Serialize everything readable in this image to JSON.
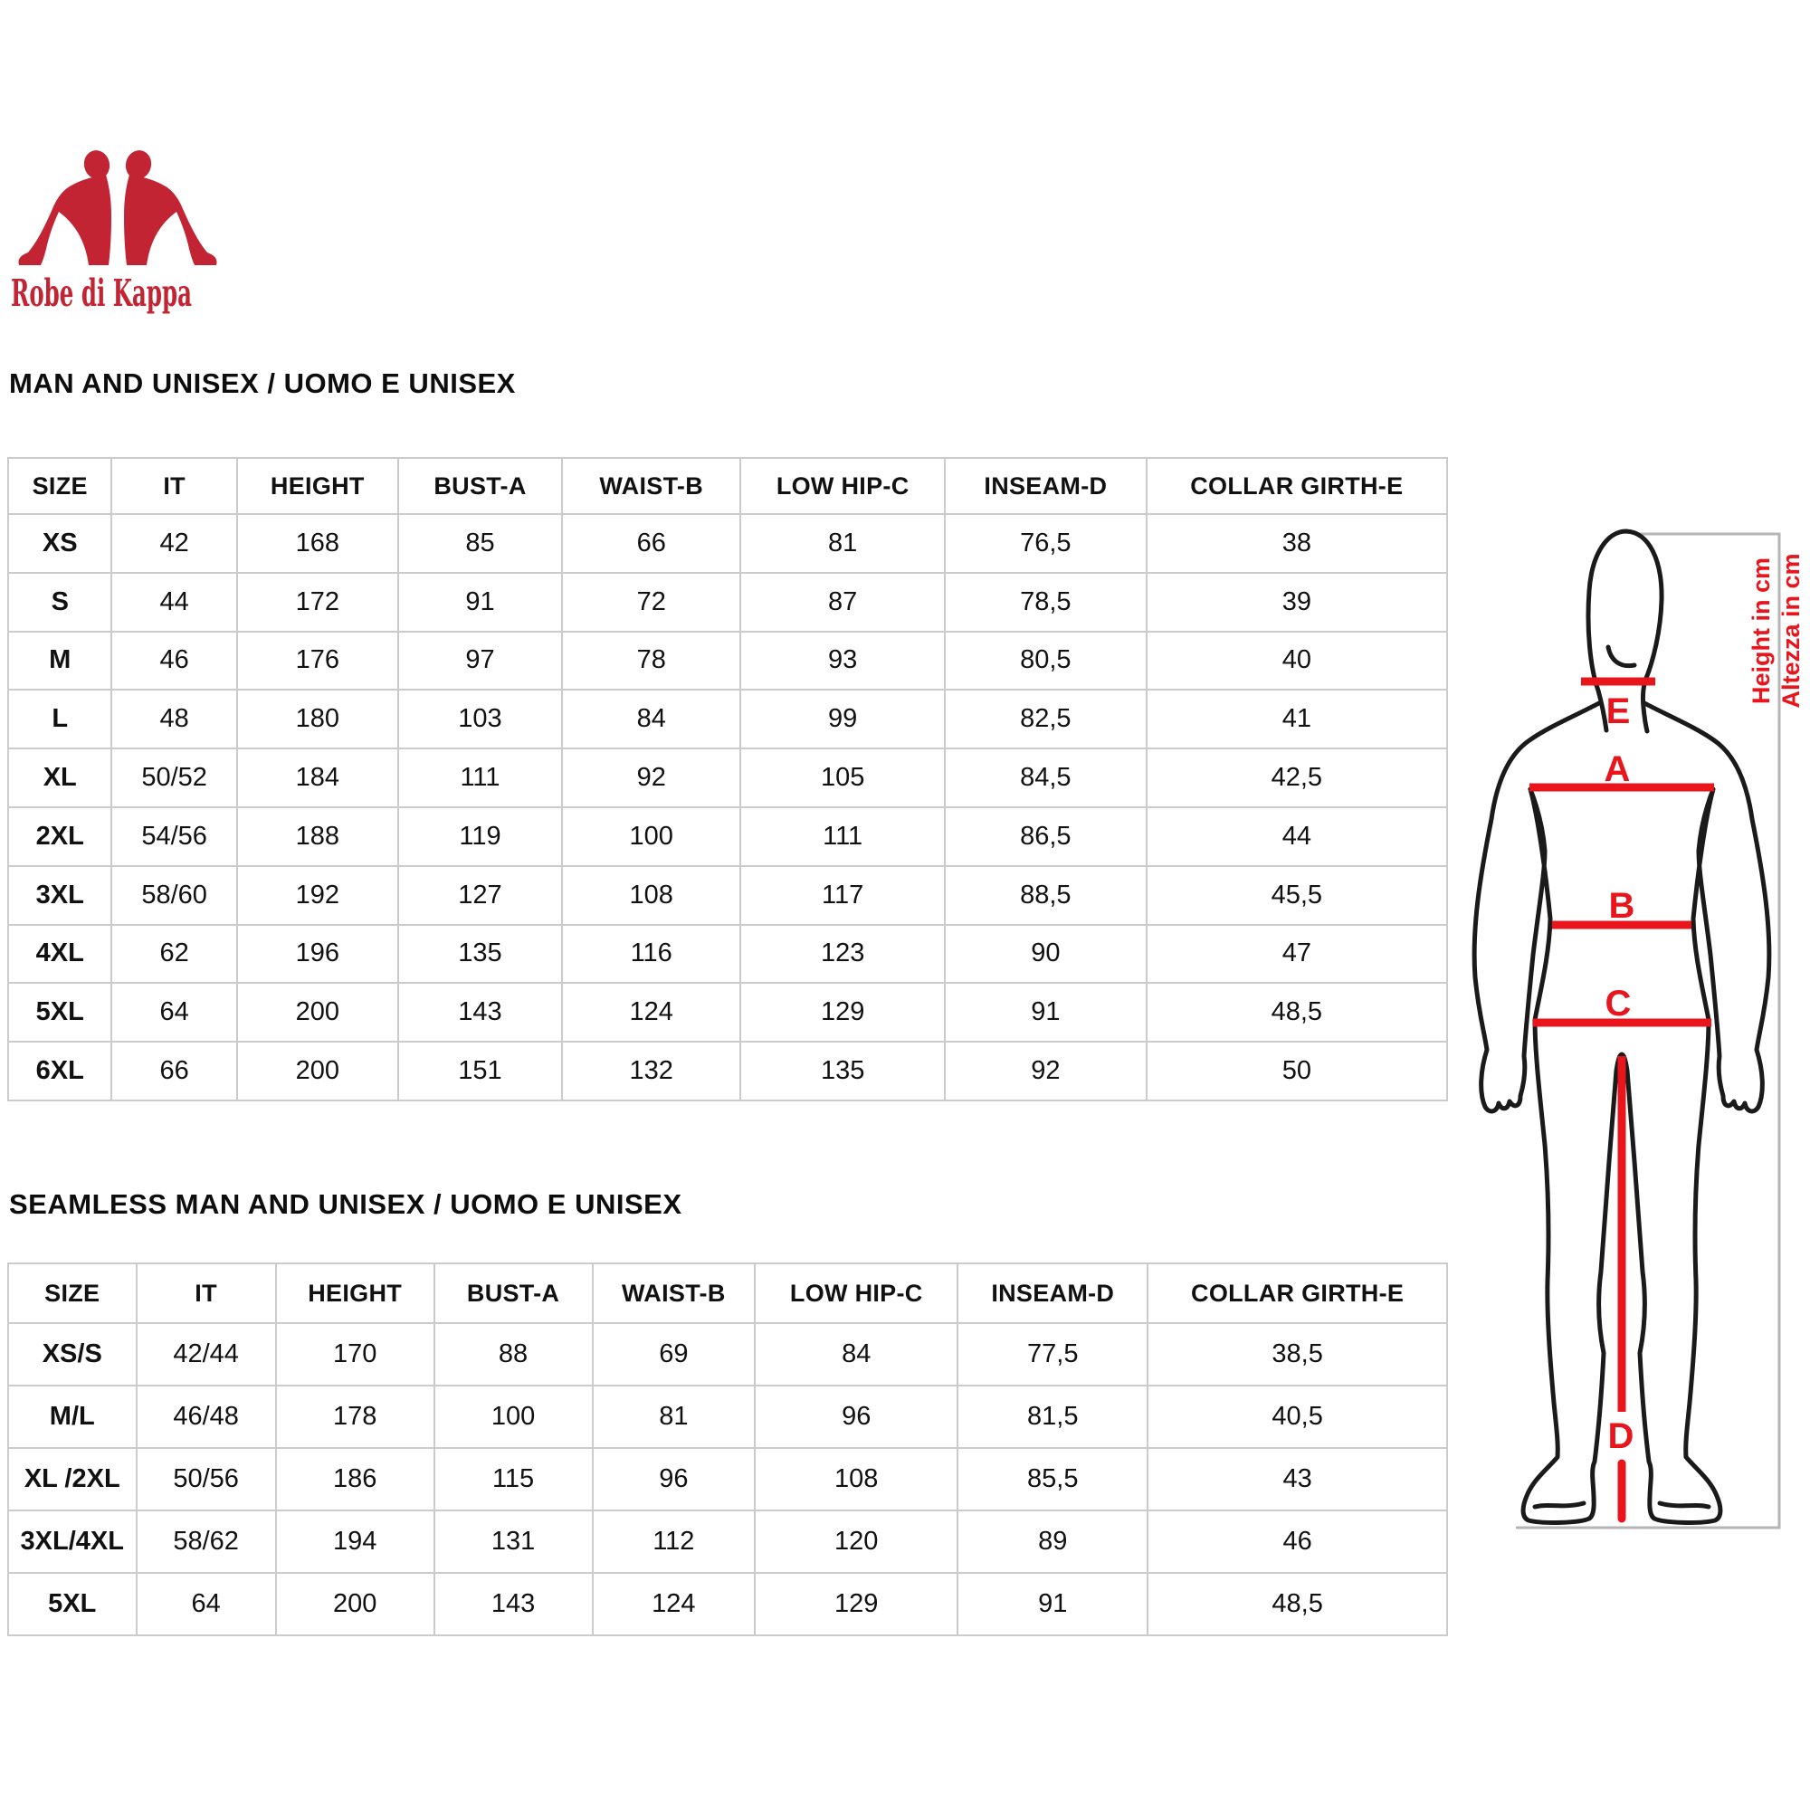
{
  "brand": {
    "logo_text": "Robe di Kappa",
    "logo_color": "#c22433"
  },
  "section1": {
    "title": "MAN AND UNISEX / UOMO E UNISEX",
    "table": {
      "headers": [
        "SIZE",
        "IT",
        "HEIGHT",
        "BUST-A",
        "WAIST-B",
        "LOW HIP-C",
        "INSEAM-D",
        "COLLAR GIRTH-E"
      ],
      "rows": [
        [
          "XS",
          "42",
          "168",
          "85",
          "66",
          "81",
          "76,5",
          "38"
        ],
        [
          "S",
          "44",
          "172",
          "91",
          "72",
          "87",
          "78,5",
          "39"
        ],
        [
          "M",
          "46",
          "176",
          "97",
          "78",
          "93",
          "80,5",
          "40"
        ],
        [
          "L",
          "48",
          "180",
          "103",
          "84",
          "99",
          "82,5",
          "41"
        ],
        [
          "XL",
          "50/52",
          "184",
          "111",
          "92",
          "105",
          "84,5",
          "42,5"
        ],
        [
          "2XL",
          "54/56",
          "188",
          "119",
          "100",
          "111",
          "86,5",
          "44"
        ],
        [
          "3XL",
          "58/60",
          "192",
          "127",
          "108",
          "117",
          "88,5",
          "45,5"
        ],
        [
          "4XL",
          "62",
          "196",
          "135",
          "116",
          "123",
          "90",
          "47"
        ],
        [
          "5XL",
          "64",
          "200",
          "143",
          "124",
          "129",
          "91",
          "48,5"
        ],
        [
          "6XL",
          "66",
          "200",
          "151",
          "132",
          "135",
          "92",
          "50"
        ]
      ]
    }
  },
  "section2": {
    "title": "SEAMLESS MAN AND UNISEX / UOMO E UNISEX",
    "table": {
      "headers": [
        "SIZE",
        "IT",
        "HEIGHT",
        "BUST-A",
        "WAIST-B",
        "LOW HIP-C",
        "INSEAM-D",
        "COLLAR GIRTH-E"
      ],
      "rows": [
        [
          "XS/S",
          "42/44",
          "170",
          "88",
          "69",
          "84",
          "77,5",
          "38,5"
        ],
        [
          "M/L",
          "46/48",
          "178",
          "100",
          "81",
          "96",
          "81,5",
          "40,5"
        ],
        [
          "XL /2XL",
          "50/56",
          "186",
          "115",
          "96",
          "108",
          "85,5",
          "43"
        ],
        [
          "3XL/4XL",
          "58/62",
          "194",
          "131",
          "112",
          "120",
          "89",
          "46"
        ],
        [
          "5XL",
          "64",
          "200",
          "143",
          "124",
          "129",
          "91",
          "48,5"
        ]
      ]
    }
  },
  "diagram": {
    "labels": {
      "collar": "E",
      "bust": "A",
      "waist": "B",
      "low_hip": "C",
      "inseam": "D"
    },
    "height_note_en": "Height in cm",
    "height_note_it": "Altezza in cm",
    "accent_color": "#e8151d",
    "outline_color": "#1a1a1a",
    "bracket_color": "#b5b5b5"
  }
}
